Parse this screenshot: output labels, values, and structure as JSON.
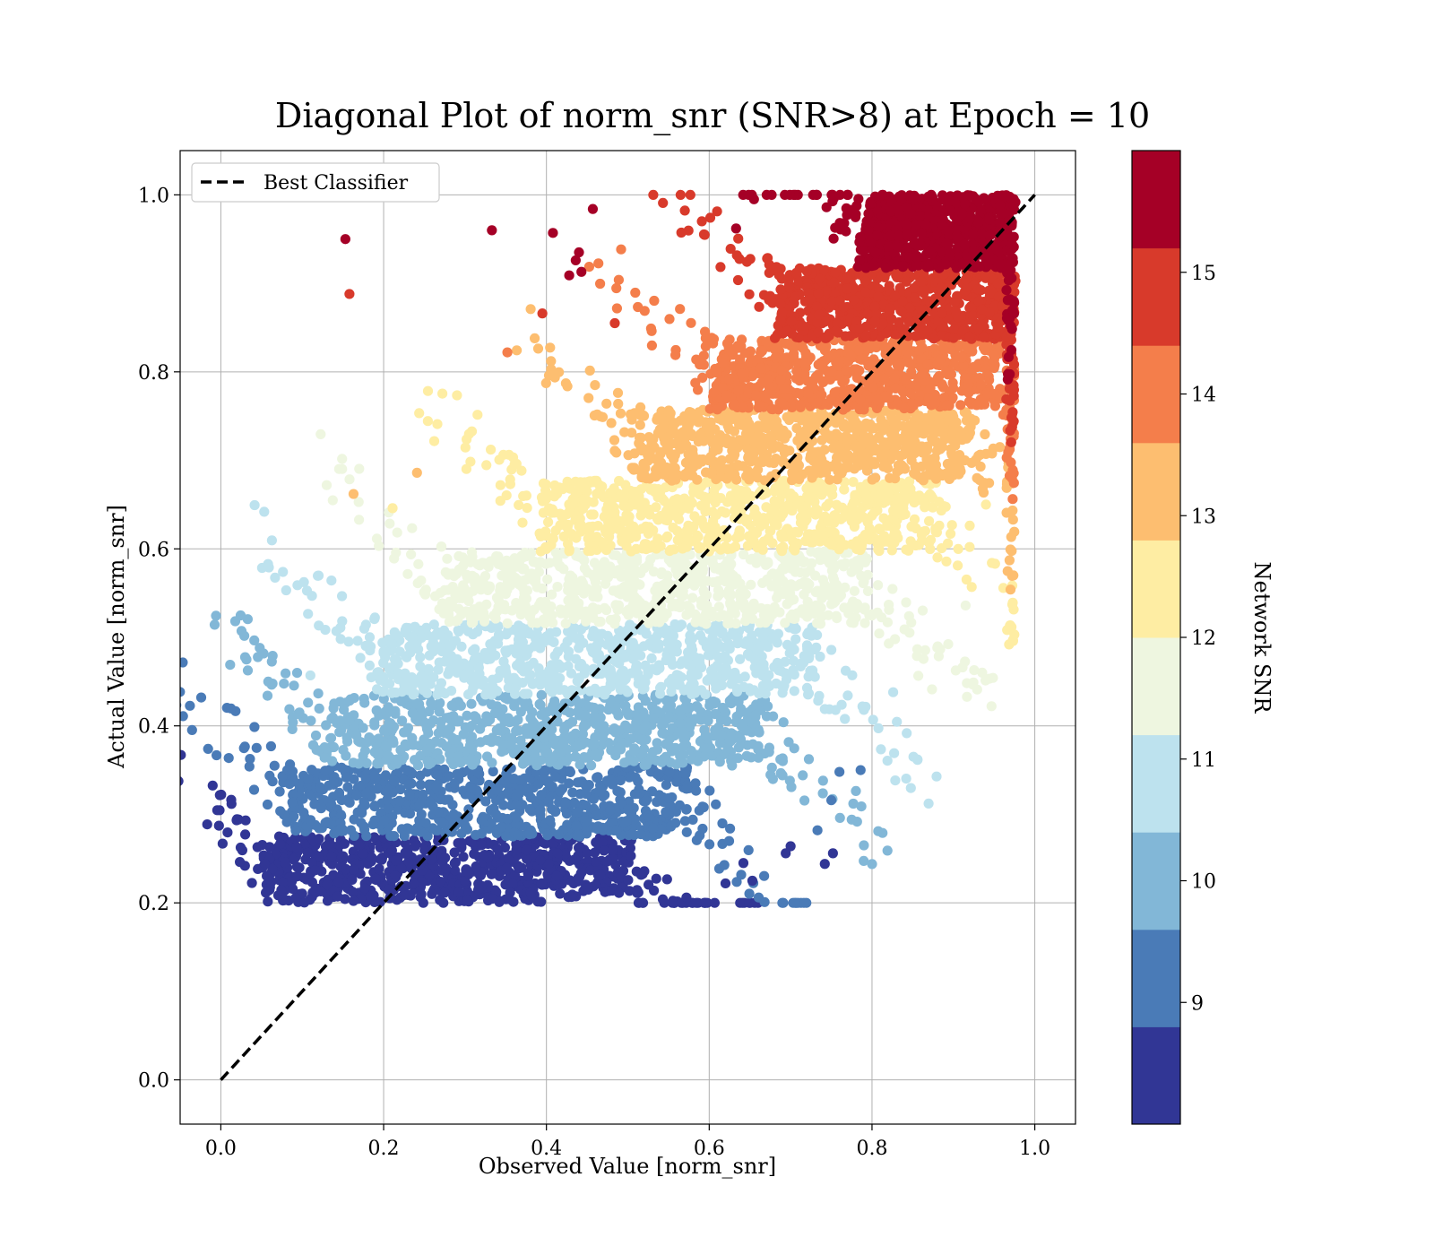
{
  "chart_data": {
    "type": "scatter",
    "title": "Diagonal Plot of norm_snr (SNR>8) at Epoch = 10",
    "xlabel": "Observed Value [norm_snr]",
    "ylabel": "Actual Value [norm_snr]",
    "xlim": [
      -0.05,
      1.05
    ],
    "ylim": [
      -0.05,
      1.05
    ],
    "xticks": [
      "0.0",
      "0.2",
      "0.4",
      "0.6",
      "0.8",
      "1.0"
    ],
    "yticks": [
      "0.0",
      "0.2",
      "0.4",
      "0.6",
      "0.8",
      "1.0"
    ],
    "grid": true,
    "legend": {
      "placement": "upper-left",
      "entries": [
        "Best Classifier"
      ]
    },
    "reference_line": {
      "name": "Best Classifier",
      "style": "dashed",
      "color": "#000000",
      "x": [
        0.0,
        1.0
      ],
      "y": [
        0.0,
        1.0
      ]
    },
    "colorbar": {
      "label": "Network SNR",
      "range": [
        8,
        16
      ],
      "ticks": [
        "9",
        "10",
        "11",
        "12",
        "13",
        "14",
        "15"
      ],
      "colors": [
        "#313695",
        "#4a7bb7",
        "#82b7d7",
        "#bde2ee",
        "#eef6e0",
        "#feeda3",
        "#fdbe70",
        "#f47e4b",
        "#d83a2b",
        "#a50026"
      ]
    },
    "bands": [
      {
        "snr_range": [
          8.0,
          8.8
        ],
        "y_range": [
          0.2,
          0.275
        ],
        "x_core": [
          0.06,
          0.5
        ],
        "color": "#313695"
      },
      {
        "snr_range": [
          8.8,
          9.6
        ],
        "y_range": [
          0.275,
          0.355
        ],
        "x_core": [
          0.09,
          0.57
        ],
        "color": "#4a7bb7"
      },
      {
        "snr_range": [
          9.6,
          10.4
        ],
        "y_range": [
          0.355,
          0.435
        ],
        "x_core": [
          0.13,
          0.66
        ],
        "color": "#82b7d7"
      },
      {
        "snr_range": [
          10.4,
          11.2
        ],
        "y_range": [
          0.435,
          0.515
        ],
        "x_core": [
          0.2,
          0.72
        ],
        "color": "#bde2ee"
      },
      {
        "snr_range": [
          11.2,
          12.0
        ],
        "y_range": [
          0.515,
          0.597
        ],
        "x_core": [
          0.28,
          0.79
        ],
        "color": "#eef6e0"
      },
      {
        "snr_range": [
          12.0,
          12.8
        ],
        "y_range": [
          0.597,
          0.677
        ],
        "x_core": [
          0.4,
          0.87
        ],
        "color": "#feeda3"
      },
      {
        "snr_range": [
          12.8,
          13.6
        ],
        "y_range": [
          0.677,
          0.757
        ],
        "x_core": [
          0.52,
          0.92
        ],
        "color": "#fdbe70"
      },
      {
        "snr_range": [
          13.6,
          14.4
        ],
        "y_range": [
          0.757,
          0.837
        ],
        "x_core": [
          0.61,
          0.95
        ],
        "color": "#f47e4b"
      },
      {
        "snr_range": [
          14.4,
          15.2
        ],
        "y_range": [
          0.837,
          0.917
        ],
        "x_core": [
          0.69,
          0.97
        ],
        "color": "#d83a2b"
      },
      {
        "snr_range": [
          15.2,
          16.0
        ],
        "y_range": [
          0.917,
          1.0
        ],
        "x_core": [
          0.79,
          0.97
        ],
        "color": "#a50026"
      }
    ],
    "outliers": [
      {
        "x": 0.153,
        "y": 0.95,
        "snr": 15.6
      },
      {
        "x": 0.158,
        "y": 0.888,
        "snr": 14.8
      },
      {
        "x": 0.333,
        "y": 0.96,
        "snr": 15.6
      },
      {
        "x": 0.408,
        "y": 0.957,
        "snr": 15.6
      },
      {
        "x": 0.457,
        "y": 0.984,
        "snr": 15.6
      },
      {
        "x": 0.44,
        "y": 0.935,
        "snr": 15.6
      },
      {
        "x": 0.436,
        "y": 0.926,
        "snr": 15.6
      },
      {
        "x": 0.428,
        "y": 0.909,
        "snr": 15.6
      },
      {
        "x": 0.443,
        "y": 0.913,
        "snr": 15.6
      },
      {
        "x": 0.395,
        "y": 0.866,
        "snr": 14.8
      },
      {
        "x": 0.352,
        "y": 0.822,
        "snr": 14.0
      },
      {
        "x": 0.484,
        "y": 0.855,
        "snr": 14.8
      },
      {
        "x": 0.163,
        "y": 0.662,
        "snr": 13.2
      },
      {
        "x": 0.241,
        "y": 0.686,
        "snr": 13.2
      },
      {
        "x": 0.211,
        "y": 0.646,
        "snr": 12.4
      },
      {
        "x": 0.142,
        "y": 0.507,
        "snr": 10.8
      },
      {
        "x": 0.11,
        "y": 0.457,
        "snr": 10.8
      },
      {
        "x": 0.054,
        "y": 0.244,
        "snr": 8.4
      },
      {
        "x": 0.045,
        "y": 0.263,
        "snr": 8.4
      },
      {
        "x": 0.742,
        "y": 0.244,
        "snr": 8.4
      },
      {
        "x": 0.752,
        "y": 0.256,
        "snr": 8.4
      },
      {
        "x": 0.7,
        "y": 0.264,
        "snr": 8.4
      },
      {
        "x": 0.694,
        "y": 0.256,
        "snr": 8.4
      },
      {
        "x": 0.653,
        "y": 0.225,
        "snr": 8.4
      },
      {
        "x": 0.62,
        "y": 0.222,
        "snr": 8.4
      },
      {
        "x": 0.642,
        "y": 0.245,
        "snr": 8.4
      },
      {
        "x": 0.572,
        "y": 0.206,
        "snr": 8.4
      },
      {
        "x": 0.543,
        "y": 0.204,
        "snr": 8.4
      },
      {
        "x": 0.786,
        "y": 0.35,
        "snr": 9.2
      },
      {
        "x": 0.75,
        "y": 0.316,
        "snr": 9.2
      },
      {
        "x": 0.733,
        "y": 0.282,
        "snr": 9.2
      },
      {
        "x": 0.76,
        "y": 0.348,
        "snr": 9.2
      },
      {
        "x": 0.826,
        "y": 0.438,
        "snr": 10.8
      },
      {
        "x": 0.79,
        "y": 0.418,
        "snr": 10.8
      },
      {
        "x": 0.915,
        "y": 0.536,
        "snr": 11.6
      },
      {
        "x": 0.94,
        "y": 0.65,
        "snr": 12.4
      },
      {
        "x": 0.957,
        "y": 0.715,
        "snr": 13.2
      },
      {
        "x": 0.633,
        "y": 0.962,
        "snr": 15.6
      },
      {
        "x": 0.655,
        "y": 0.995,
        "snr": 15.6
      }
    ]
  }
}
